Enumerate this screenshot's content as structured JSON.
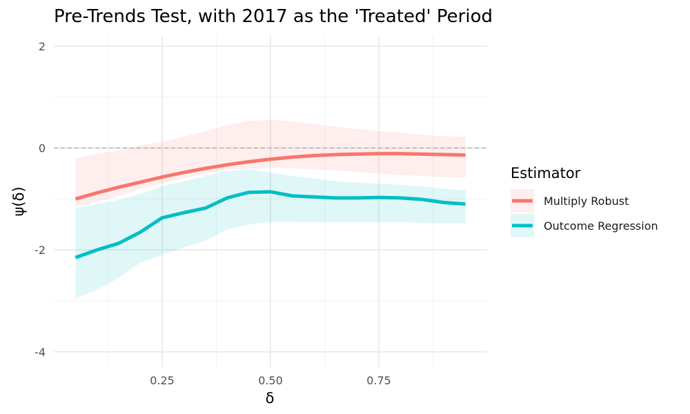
{
  "chart_data": {
    "type": "line",
    "title": "Pre-Trends Test, with 2017 as the 'Treated' Period",
    "xlabel": "δ",
    "ylabel": "ψ(δ)",
    "xlim": [
      0.0,
      1.0
    ],
    "ylim": [
      -4.3,
      2.2
    ],
    "x_ticks": [
      {
        "value": 0.25,
        "label": "0.25"
      },
      {
        "value": 0.5,
        "label": "0.50"
      },
      {
        "value": 0.75,
        "label": "0.75"
      }
    ],
    "y_ticks": [
      {
        "value": 2,
        "label": "2"
      },
      {
        "value": 0,
        "label": "0"
      },
      {
        "value": -2,
        "label": "-2"
      },
      {
        "value": -4,
        "label": "-4"
      }
    ],
    "reference_line": {
      "y": 0,
      "style": "dashed"
    },
    "legend_title": "Estimator",
    "x": [
      0.05,
      0.1,
      0.15,
      0.2,
      0.25,
      0.3,
      0.35,
      0.4,
      0.45,
      0.5,
      0.55,
      0.6,
      0.65,
      0.7,
      0.75,
      0.8,
      0.85,
      0.9,
      0.95
    ],
    "series": [
      {
        "name": "Multiply Robust",
        "color": "#F8766D",
        "fill": "#FDECEA",
        "values": [
          -1.0,
          -0.88,
          -0.77,
          -0.67,
          -0.57,
          -0.48,
          -0.4,
          -0.33,
          -0.27,
          -0.22,
          -0.18,
          -0.15,
          -0.13,
          -0.12,
          -0.11,
          -0.11,
          -0.12,
          -0.13,
          -0.14
        ],
        "lower": [
          -1.15,
          -1.05,
          -0.95,
          -0.8,
          -0.7,
          -0.6,
          -0.5,
          -0.43,
          -0.4,
          -0.39,
          -0.4,
          -0.42,
          -0.44,
          -0.47,
          -0.5,
          -0.53,
          -0.55,
          -0.57,
          -0.58
        ],
        "upper": [
          -0.2,
          -0.12,
          -0.05,
          0.05,
          0.12,
          0.22,
          0.33,
          0.45,
          0.53,
          0.55,
          0.52,
          0.47,
          0.42,
          0.37,
          0.33,
          0.3,
          0.26,
          0.23,
          0.22
        ]
      },
      {
        "name": "Outcome Regression",
        "color": "#00BFC4",
        "fill": "#E0F6F7",
        "values": [
          -2.15,
          -2.0,
          -1.87,
          -1.65,
          -1.37,
          -1.27,
          -1.18,
          -0.98,
          -0.87,
          -0.86,
          -0.94,
          -0.96,
          -0.98,
          -0.98,
          -0.97,
          -0.98,
          -1.01,
          -1.07,
          -1.1
        ],
        "lower": [
          -2.95,
          -2.78,
          -2.55,
          -2.25,
          -2.1,
          -1.95,
          -1.82,
          -1.6,
          -1.5,
          -1.45,
          -1.45,
          -1.46,
          -1.46,
          -1.46,
          -1.46,
          -1.46,
          -1.47,
          -1.48,
          -1.48
        ],
        "upper": [
          -1.18,
          -1.1,
          -1.02,
          -0.9,
          -0.75,
          -0.65,
          -0.55,
          -0.45,
          -0.42,
          -0.48,
          -0.55,
          -0.6,
          -0.65,
          -0.68,
          -0.7,
          -0.72,
          -0.75,
          -0.8,
          -0.83
        ]
      }
    ]
  }
}
